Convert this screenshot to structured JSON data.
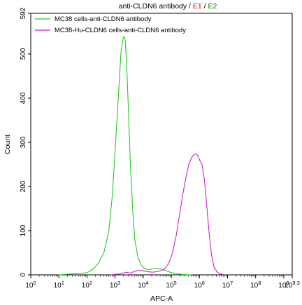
{
  "chart_data": {
    "type": "histogram",
    "title": "anti-CLDN6 antibody / E1 / E2",
    "title_parts": [
      {
        "text": "anti-CLDN6 antibody / ",
        "color": "#000000"
      },
      {
        "text": "E1",
        "color": "#e00000"
      },
      {
        "text": " / ",
        "color": "#000000"
      },
      {
        "text": "E2",
        "color": "#008000"
      }
    ],
    "xlabel": "APC-A",
    "ylabel": "Count",
    "x_scale": "log",
    "xlim": [
      1,
      1995262315
    ],
    "ylim": [
      0,
      592
    ],
    "x_ticks": [
      {
        "value": 1,
        "base": "10",
        "exp": "0"
      },
      {
        "value": 10,
        "base": "10",
        "exp": "1"
      },
      {
        "value": 100,
        "base": "10",
        "exp": "2"
      },
      {
        "value": 1000,
        "base": "10",
        "exp": "3"
      },
      {
        "value": 10000,
        "base": "10",
        "exp": "4"
      },
      {
        "value": 100000,
        "base": "10",
        "exp": "5"
      },
      {
        "value": 1000000,
        "base": "10",
        "exp": "6"
      },
      {
        "value": 10000000,
        "base": "10",
        "exp": "7"
      },
      {
        "value": 100000000,
        "base": "10",
        "exp": "8"
      },
      {
        "value": 1000000000,
        "base": "10",
        "exp": "9"
      },
      {
        "value": 1995262315,
        "base": "10",
        "exp": "9.3"
      }
    ],
    "y_ticks": [
      0,
      100,
      200,
      300,
      400,
      500,
      592
    ],
    "legend_position": "top-left",
    "grid": false,
    "series": [
      {
        "name": "MC38 cells-anti-CLDN6 antibody",
        "color": "#22cc22",
        "points": [
          [
            10,
            0
          ],
          [
            15,
            1
          ],
          [
            30,
            2
          ],
          [
            60,
            3
          ],
          [
            100,
            5
          ],
          [
            160,
            12
          ],
          [
            250,
            25
          ],
          [
            400,
            50
          ],
          [
            600,
            100
          ],
          [
            800,
            180
          ],
          [
            1000,
            280
          ],
          [
            1300,
            400
          ],
          [
            1600,
            500
          ],
          [
            1900,
            535
          ],
          [
            2100,
            540
          ],
          [
            2300,
            530
          ],
          [
            2600,
            470
          ],
          [
            3000,
            370
          ],
          [
            3500,
            250
          ],
          [
            4200,
            150
          ],
          [
            5000,
            80
          ],
          [
            6500,
            40
          ],
          [
            8500,
            22
          ],
          [
            11000,
            14
          ],
          [
            15000,
            12
          ],
          [
            20000,
            13
          ],
          [
            28000,
            15
          ],
          [
            40000,
            14
          ],
          [
            60000,
            10
          ],
          [
            90000,
            6
          ],
          [
            140000,
            3
          ],
          [
            250000,
            1
          ],
          [
            500000,
            0
          ]
        ]
      },
      {
        "name": "MC38-Hu-CLDN6 cells-anti-CLDN6 antibody",
        "color": "#cc22cc",
        "points": [
          [
            700,
            0
          ],
          [
            1500,
            2
          ],
          [
            2500,
            6
          ],
          [
            3500,
            4
          ],
          [
            5000,
            8
          ],
          [
            7000,
            10
          ],
          [
            10000,
            9
          ],
          [
            15000,
            7
          ],
          [
            22000,
            6
          ],
          [
            35000,
            8
          ],
          [
            55000,
            12
          ],
          [
            80000,
            25
          ],
          [
            110000,
            50
          ],
          [
            150000,
            90
          ],
          [
            200000,
            140
          ],
          [
            260000,
            185
          ],
          [
            330000,
            220
          ],
          [
            420000,
            250
          ],
          [
            520000,
            265
          ],
          [
            650000,
            273
          ],
          [
            780000,
            274
          ],
          [
            900000,
            268
          ],
          [
            1050000,
            258
          ],
          [
            1250000,
            248
          ],
          [
            1500000,
            215
          ],
          [
            1800000,
            160
          ],
          [
            2200000,
            95
          ],
          [
            2700000,
            45
          ],
          [
            3300000,
            18
          ],
          [
            4200000,
            7
          ],
          [
            5500000,
            2
          ],
          [
            8000000,
            0
          ]
        ]
      }
    ]
  }
}
